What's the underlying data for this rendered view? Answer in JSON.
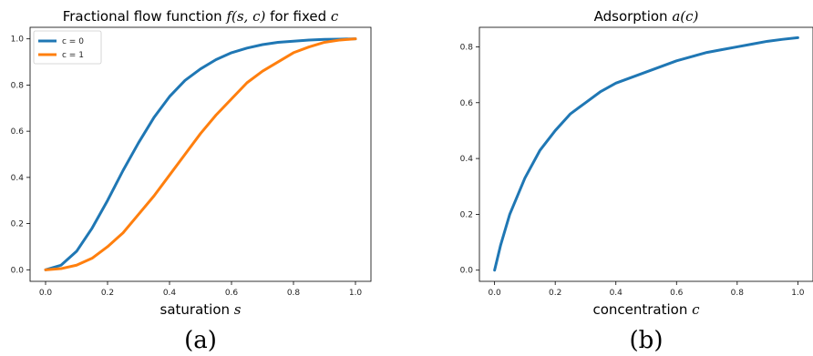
{
  "chart_data": [
    {
      "type": "line",
      "title": {
        "text": "Fractional flow function ",
        "math1": "f(s, c)",
        "text2": " for fixed ",
        "math2": "c"
      },
      "xlabel": {
        "text": "saturation ",
        "math": "s"
      },
      "ylabel": "",
      "xlim": [
        -0.05,
        1.05
      ],
      "ylim": [
        -0.05,
        1.05
      ],
      "xticks": [
        0.0,
        0.2,
        0.4,
        0.6,
        0.8,
        1.0
      ],
      "xtick_labels": [
        "0.0",
        "0.2",
        "0.4",
        "0.6",
        "0.8",
        "1.0"
      ],
      "yticks": [
        0.0,
        0.2,
        0.4,
        0.6,
        0.8,
        1.0
      ],
      "ytick_labels": [
        "0.0",
        "0.2",
        "0.4",
        "0.6",
        "0.8",
        "1.0"
      ],
      "grid": false,
      "legend": "top-left",
      "caption": "(a)",
      "series": [
        {
          "name": "c = 0",
          "color": "#1f77b4",
          "x": [
            0.0,
            0.05,
            0.1,
            0.15,
            0.2,
            0.25,
            0.3,
            0.35,
            0.4,
            0.45,
            0.5,
            0.55,
            0.6,
            0.65,
            0.7,
            0.75,
            0.8,
            0.85,
            0.9,
            0.95,
            1.0
          ],
          "y": [
            0.0,
            0.02,
            0.08,
            0.18,
            0.3,
            0.43,
            0.55,
            0.66,
            0.75,
            0.82,
            0.87,
            0.91,
            0.94,
            0.96,
            0.975,
            0.985,
            0.99,
            0.995,
            0.998,
            0.999,
            1.0
          ]
        },
        {
          "name": "c = 1",
          "color": "#ff7f0e",
          "x": [
            0.0,
            0.05,
            0.1,
            0.15,
            0.2,
            0.25,
            0.3,
            0.35,
            0.4,
            0.45,
            0.5,
            0.55,
            0.6,
            0.65,
            0.7,
            0.75,
            0.8,
            0.85,
            0.9,
            0.95,
            1.0
          ],
          "y": [
            0.0,
            0.005,
            0.02,
            0.05,
            0.1,
            0.16,
            0.24,
            0.32,
            0.41,
            0.5,
            0.59,
            0.67,
            0.74,
            0.81,
            0.86,
            0.9,
            0.94,
            0.965,
            0.985,
            0.995,
            1.0
          ]
        }
      ]
    },
    {
      "type": "line",
      "title": {
        "text": "Adsorption ",
        "math1": "a(c)",
        "text2": "",
        "math2": ""
      },
      "xlabel": {
        "text": "concentration ",
        "math": "c"
      },
      "ylabel": "",
      "xlim": [
        -0.05,
        1.05
      ],
      "ylim": [
        -0.04,
        0.87
      ],
      "xticks": [
        0.0,
        0.2,
        0.4,
        0.6,
        0.8,
        1.0
      ],
      "xtick_labels": [
        "0.0",
        "0.2",
        "0.4",
        "0.6",
        "0.8",
        "1.0"
      ],
      "yticks": [
        0.0,
        0.2,
        0.4,
        0.6,
        0.8
      ],
      "ytick_labels": [
        "0.0",
        "0.2",
        "0.4",
        "0.6",
        "0.8"
      ],
      "grid": false,
      "legend": "none",
      "caption": "(b)",
      "series": [
        {
          "color": "#1f77b4",
          "x": [
            0.0,
            0.02,
            0.05,
            0.1,
            0.15,
            0.2,
            0.25,
            0.3,
            0.35,
            0.4,
            0.45,
            0.5,
            0.55,
            0.6,
            0.65,
            0.7,
            0.75,
            0.8,
            0.85,
            0.9,
            0.95,
            1.0
          ],
          "y": [
            0.0,
            0.09,
            0.2,
            0.33,
            0.43,
            0.5,
            0.56,
            0.6,
            0.64,
            0.67,
            0.69,
            0.71,
            0.73,
            0.75,
            0.765,
            0.78,
            0.79,
            0.8,
            0.81,
            0.82,
            0.827,
            0.833
          ]
        }
      ]
    }
  ]
}
